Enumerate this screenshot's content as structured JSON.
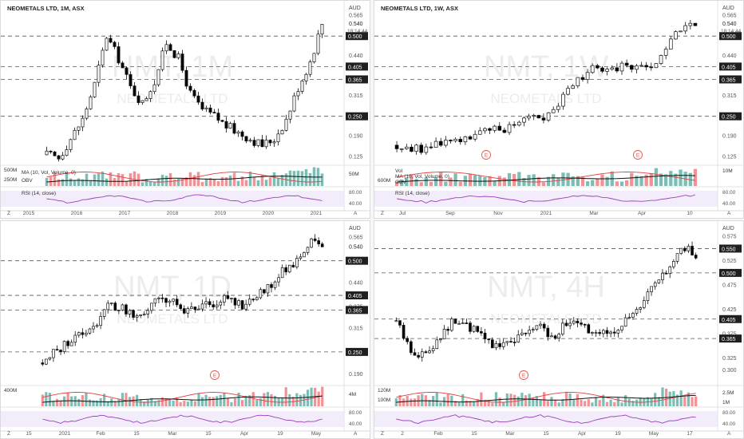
{
  "panels": [
    {
      "id": "p1",
      "symbol_line": "NEOMETALS LTD, 1M, ASX",
      "watermark_sym": "NMT, 1M",
      "watermark_name": "NEOMETALS LTD",
      "currency": "AUD",
      "price_axis_labels": [
        "0.565",
        "0.440",
        "0.315",
        "0.190",
        "0.125"
      ],
      "level_labels": [
        "0.500",
        "0.405",
        "0.365",
        "0.250"
      ],
      "last_price": "0.540",
      "countdown": "18:14:44",
      "x_labels": [
        "2015",
        "2016",
        "2017",
        "2018",
        "2019",
        "2020",
        "2021"
      ],
      "vol_labels": [
        "500M",
        "250M"
      ],
      "vol_right_label": "50M",
      "ma_label": "MA (10, Vol, Volume, 0)",
      "obv_label": "OBV",
      "rsi_label": "RSI (14, close)",
      "rsi_levels": [
        "80.00",
        "40.00"
      ],
      "corner_left": "Z",
      "corner_right": "A"
    },
    {
      "id": "p2",
      "symbol_line": "NEOMETALS LTD, 1W, ASX",
      "watermark_sym": "NMT, 1W",
      "watermark_name": "NEOMETALS LTD",
      "currency": "AUD",
      "price_axis_labels": [
        "0.565",
        "0.440",
        "0.315",
        "0.190",
        "0.125"
      ],
      "level_labels": [
        "0.500",
        "0.405",
        "0.365",
        "0.250"
      ],
      "last_price": "0.540",
      "countdown": "18:14:44",
      "x_labels": [
        "Jul",
        "Sep",
        "Nov",
        "2021",
        "Mar",
        "Apr",
        "10"
      ],
      "vol_label": "Vol",
      "ma_label": "MA (10, Vol, Volume, 0)",
      "vol_left_label": "600M",
      "obv_label": "OBV",
      "vol_right_label": "10M",
      "rsi_label": "RSI (14, close)",
      "rsi_levels": [
        "80.00",
        "40.00"
      ],
      "earnings_marker": "E",
      "corner_left": "Z",
      "corner_right": "A"
    },
    {
      "id": "p3",
      "symbol_line": "",
      "watermark_sym": "NMT, 1D",
      "watermark_name": "NEOMETALS LTD",
      "currency": "AUD",
      "price_axis_labels": [
        "0.565",
        "0.440",
        "0.375",
        "0.315",
        "0.190"
      ],
      "level_labels": [
        "0.500",
        "0.405",
        "0.365",
        "0.250"
      ],
      "last_price": "0.540",
      "x_labels": [
        "15",
        "2021",
        "Feb",
        "15",
        "Mar",
        "15",
        "Apr",
        "19",
        "May"
      ],
      "vol_labels": [
        "400M"
      ],
      "vol_right_label": "4M",
      "rsi_levels": [
        "80.00",
        "40.00"
      ],
      "earnings_marker": "E",
      "corner_left": "Z",
      "corner_right": "A"
    },
    {
      "id": "p4",
      "symbol_line": "",
      "watermark_sym": "NMT, 4H",
      "watermark_name": "NEOMETALS LTD",
      "currency": "AUD",
      "price_axis_labels": [
        "0.575",
        "0.525",
        "0.475",
        "0.425",
        "0.375",
        "0.325",
        "0.300"
      ],
      "level_labels": [
        "0.550",
        "0.500",
        "0.405",
        "0.365"
      ],
      "x_labels": [
        "2",
        "Feb",
        "15",
        "Mar",
        "15",
        "Apr",
        "19",
        "May",
        "17"
      ],
      "vol_labels": [
        "120M",
        "100M"
      ],
      "vol_right_labels": [
        "2.5M",
        "1M"
      ],
      "rsi_levels": [
        "80.00",
        "40.00"
      ],
      "earnings_marker": "E",
      "corner_left": "Z",
      "corner_right": "A"
    }
  ],
  "colors": {
    "up": "#ffffff",
    "down": "#000000",
    "level_label_bg": "#1f1f1f",
    "volume_teal": "#65b3a9",
    "volume_red": "#ef7f84",
    "ma_red": "#e0403f",
    "rsi_purple": "#9b3fbd",
    "rsi_band": "#e9ddf5",
    "earnings_red": "#e5564d"
  },
  "chart_data": [
    {
      "type": "candlestick",
      "title": "NEOMETALS LTD, 1M, ASX",
      "timeframe": "1M",
      "ylim": [
        0.1,
        0.6
      ],
      "levels": [
        0.5,
        0.405,
        0.365,
        0.25
      ],
      "x": [
        "2015",
        "2016",
        "2017",
        "2018",
        "2019",
        "2020",
        "2021"
      ],
      "close_path": [
        0.13,
        0.12,
        0.18,
        0.24,
        0.35,
        0.5,
        0.43,
        0.34,
        0.29,
        0.36,
        0.48,
        0.43,
        0.32,
        0.27,
        0.25,
        0.22,
        0.2,
        0.18,
        0.16,
        0.18,
        0.24,
        0.34,
        0.42,
        0.54
      ]
    },
    {
      "type": "candlestick",
      "title": "NEOMETALS LTD, 1W, ASX",
      "timeframe": "1W",
      "ylim": [
        0.1,
        0.6
      ],
      "levels": [
        0.5,
        0.405,
        0.365,
        0.25
      ],
      "x": [
        "Jul",
        "Sep",
        "Nov",
        "2021",
        "Mar",
        "Apr",
        "10"
      ],
      "close_path": [
        0.16,
        0.15,
        0.15,
        0.17,
        0.18,
        0.19,
        0.2,
        0.21,
        0.23,
        0.26,
        0.25,
        0.3,
        0.36,
        0.4,
        0.38,
        0.41,
        0.4,
        0.39,
        0.46,
        0.52,
        0.54
      ]
    },
    {
      "type": "candlestick",
      "title": "NMT, 1D",
      "timeframe": "1D",
      "ylim": [
        0.16,
        0.6
      ],
      "levels": [
        0.5,
        0.405,
        0.365,
        0.25
      ],
      "x": [
        "15",
        "2021",
        "Feb",
        "15",
        "Mar",
        "15",
        "Apr",
        "19",
        "May"
      ],
      "close_path": [
        0.22,
        0.25,
        0.28,
        0.3,
        0.33,
        0.38,
        0.37,
        0.34,
        0.37,
        0.4,
        0.38,
        0.36,
        0.37,
        0.39,
        0.4,
        0.38,
        0.4,
        0.43,
        0.47,
        0.5,
        0.55,
        0.54
      ]
    },
    {
      "type": "candlestick",
      "title": "NMT, 4H",
      "timeframe": "4H",
      "ylim": [
        0.27,
        0.6
      ],
      "levels": [
        0.55,
        0.5,
        0.405,
        0.365
      ],
      "x": [
        "2",
        "Feb",
        "15",
        "Mar",
        "15",
        "Apr",
        "19",
        "May",
        "17"
      ],
      "close_path": [
        0.4,
        0.34,
        0.33,
        0.37,
        0.4,
        0.39,
        0.37,
        0.35,
        0.36,
        0.38,
        0.39,
        0.37,
        0.4,
        0.39,
        0.37,
        0.38,
        0.4,
        0.42,
        0.47,
        0.5,
        0.55,
        0.54
      ]
    }
  ]
}
